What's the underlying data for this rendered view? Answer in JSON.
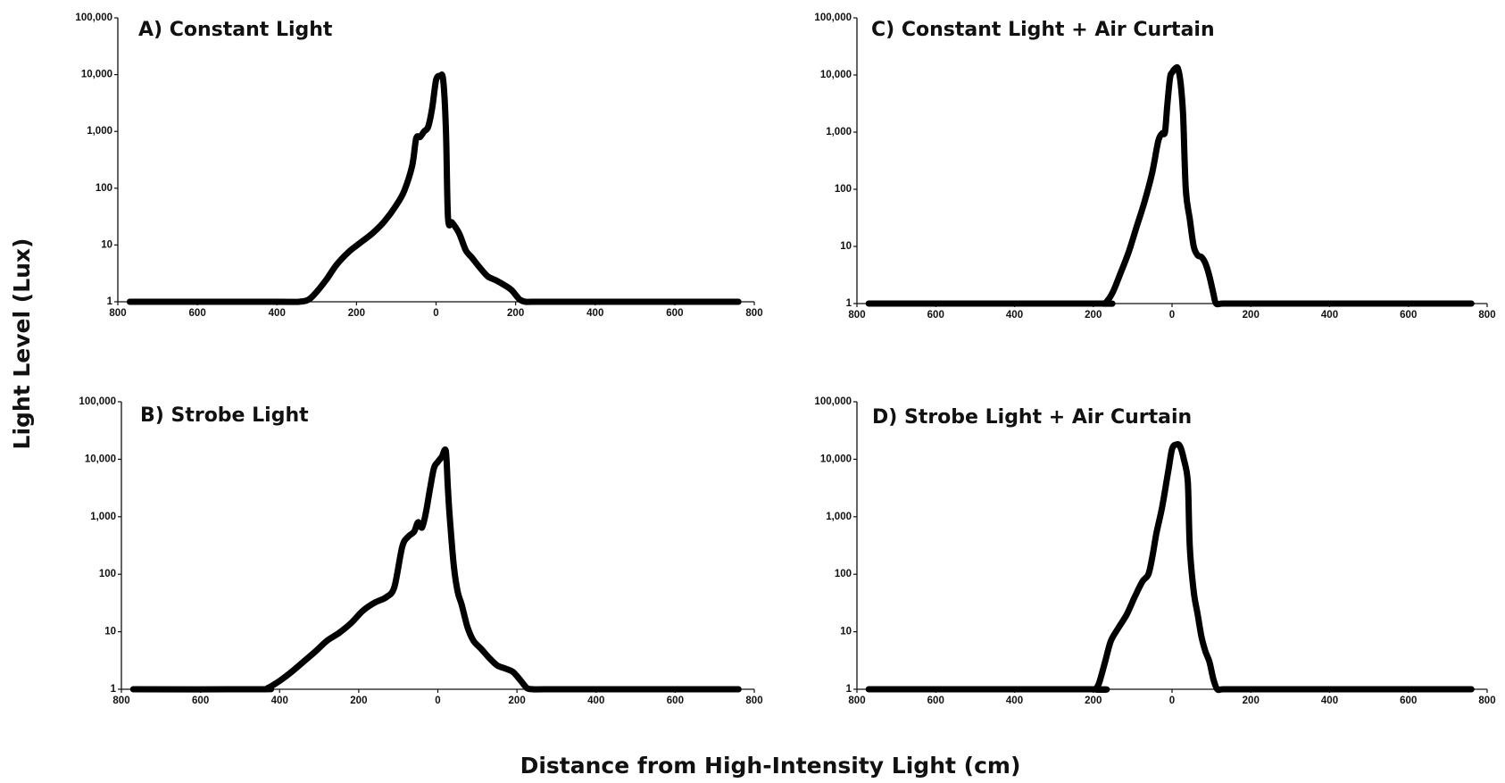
{
  "figure": {
    "ylabel": "Light Level (Lux)",
    "xlabel": "Distance from High-Intensity Light (cm)"
  },
  "chart_data": [
    {
      "type": "line",
      "title": "A) Constant Light",
      "y_scale": "log",
      "ylim": [
        1,
        100000
      ],
      "xlim": [
        -800,
        800
      ],
      "y_ticks": [
        1,
        10,
        100,
        1000,
        10000,
        100000
      ],
      "y_tick_labels": [
        "1",
        "10",
        "100",
        "1,000",
        "10,000",
        "100,000"
      ],
      "x_ticks": [
        -800,
        -600,
        -400,
        -200,
        0,
        200,
        400,
        600,
        800
      ],
      "x_tick_labels": [
        "800",
        "600",
        "400",
        "200",
        "0",
        "200",
        "400",
        "600",
        "800"
      ],
      "series": [
        {
          "x": [
            -770,
            -400,
            -345,
            -320,
            -300,
            -275,
            -250,
            -220,
            -190,
            -160,
            -130,
            -100,
            -80,
            -60,
            -50,
            -40,
            -30,
            -20,
            -10,
            0,
            10,
            18,
            25,
            30,
            40,
            50,
            60,
            75,
            90,
            110,
            130,
            150,
            170,
            190,
            210,
            225,
            240,
            270,
            400,
            600,
            760
          ],
          "y": [
            1,
            1,
            1,
            1.1,
            1.5,
            2.5,
            4.5,
            7.5,
            11,
            16,
            26,
            50,
            90,
            250,
            750,
            800,
            1000,
            1200,
            2500,
            8000,
            9500,
            8000,
            1000,
            30,
            25,
            20,
            15,
            8,
            6,
            4,
            2.8,
            2.4,
            2,
            1.6,
            1.1,
            1,
            1,
            1,
            1,
            1,
            1
          ]
        }
      ]
    },
    {
      "type": "line",
      "title": "B) Strobe Light",
      "y_scale": "log",
      "ylim": [
        1,
        100000
      ],
      "xlim": [
        -800,
        800
      ],
      "y_ticks": [
        1,
        10,
        100,
        1000,
        10000,
        100000
      ],
      "y_tick_labels": [
        "1",
        "10",
        "100",
        "1,000",
        "10,000",
        "100,000"
      ],
      "x_ticks": [
        -800,
        -600,
        -400,
        -200,
        0,
        200,
        400,
        600,
        800
      ],
      "x_tick_labels": [
        "800",
        "600",
        "400",
        "200",
        "0",
        "200",
        "400",
        "600",
        "800"
      ],
      "series": [
        {
          "x": [
            -770,
            -450,
            -430,
            -400,
            -370,
            -340,
            -310,
            -280,
            -250,
            -220,
            -190,
            -160,
            -130,
            -110,
            -90,
            -75,
            -60,
            -50,
            -40,
            -30,
            -20,
            -10,
            0,
            10,
            20,
            25,
            30,
            40,
            50,
            60,
            75,
            90,
            110,
            130,
            150,
            170,
            190,
            210,
            225,
            240,
            270,
            400,
            600,
            760
          ],
          "y": [
            1,
            1,
            1.05,
            1.4,
            2,
            3,
            4.5,
            7,
            9.5,
            14,
            23,
            32,
            40,
            60,
            300,
            450,
            550,
            800,
            650,
            1200,
            3000,
            7000,
            9000,
            11000,
            14000,
            3500,
            1000,
            150,
            50,
            30,
            12,
            7,
            5,
            3.5,
            2.6,
            2.3,
            2,
            1.4,
            1.05,
            1,
            1,
            1,
            1,
            1
          ]
        }
      ]
    },
    {
      "type": "line",
      "title": "C) Constant Light + Air Curtain",
      "y_scale": "log",
      "ylim": [
        1,
        100000
      ],
      "xlim": [
        -800,
        800
      ],
      "y_ticks": [
        1,
        10,
        100,
        1000,
        10000,
        100000
      ],
      "y_tick_labels": [
        "1",
        "10",
        "100",
        "1,000",
        "10,000",
        "100,000"
      ],
      "x_ticks": [
        -800,
        -600,
        -400,
        -200,
        0,
        200,
        400,
        600,
        800
      ],
      "x_tick_labels": [
        "800",
        "600",
        "400",
        "200",
        "0",
        "200",
        "400",
        "600",
        "800"
      ],
      "series": [
        {
          "x": [
            -770,
            -200,
            -175,
            -165,
            -150,
            -130,
            -110,
            -90,
            -70,
            -50,
            -35,
            -25,
            -18,
            -12,
            -5,
            0,
            8,
            15,
            22,
            28,
            35,
            45,
            55,
            65,
            75,
            85,
            95,
            105,
            112,
            130,
            200,
            400,
            600,
            760
          ],
          "y": [
            1,
            1,
            1,
            1.1,
            1.6,
            3.5,
            8,
            22,
            60,
            200,
            700,
            950,
            1000,
            3000,
            9000,
            11000,
            13000,
            13000,
            7000,
            2000,
            100,
            30,
            10,
            7,
            6.5,
            5,
            3,
            1.5,
            1,
            1,
            1,
            1,
            1,
            1
          ]
        }
      ]
    },
    {
      "type": "line",
      "title": "D) Strobe Light + Air Curtain",
      "y_scale": "log",
      "ylim": [
        1,
        100000
      ],
      "xlim": [
        -800,
        800
      ],
      "y_ticks": [
        1,
        10,
        100,
        1000,
        10000,
        100000
      ],
      "y_tick_labels": [
        "1",
        "10",
        "100",
        "1,000",
        "10,000",
        "100,000"
      ],
      "x_ticks": [
        -800,
        -600,
        -400,
        -200,
        0,
        200,
        400,
        600,
        800
      ],
      "x_tick_labels": [
        "800",
        "600",
        "400",
        "200",
        "0",
        "200",
        "400",
        "600",
        "800"
      ],
      "series": [
        {
          "x": [
            -770,
            -210,
            -195,
            -185,
            -170,
            -155,
            -135,
            -115,
            -95,
            -75,
            -60,
            -50,
            -40,
            -25,
            -10,
            0,
            10,
            20,
            30,
            40,
            45,
            55,
            65,
            75,
            85,
            95,
            105,
            115,
            130,
            200,
            400,
            600,
            760
          ],
          "y": [
            1,
            1,
            1,
            1.3,
            3,
            7,
            12,
            20,
            40,
            75,
            100,
            200,
            500,
            1500,
            6000,
            15000,
            18000,
            17000,
            10000,
            4000,
            300,
            50,
            20,
            8,
            4.5,
            3,
            1.5,
            1,
            1,
            1,
            1,
            1,
            1
          ]
        }
      ]
    }
  ]
}
